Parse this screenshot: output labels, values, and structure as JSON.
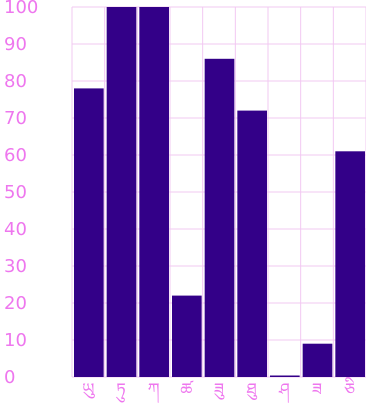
{
  "chart_data": {
    "type": "bar",
    "title": "",
    "xlabel": "",
    "ylabel": "",
    "ylim": [
      0,
      100
    ],
    "yticks": [
      0,
      10,
      20,
      30,
      40,
      50,
      60,
      70,
      80,
      90,
      100
    ],
    "categories": [
      "ཡུ",
      "ཏུ",
      "ཀ",
      "ཚ",
      "ཟུ",
      "ཐུ",
      "ཤ",
      "ཟ",
      "ཅི"
    ],
    "values": [
      78,
      100,
      100,
      22,
      86,
      72,
      0,
      9,
      61
    ],
    "grid": true,
    "legend": "none",
    "colors": {
      "bar": "#330088",
      "grid": "#f2c8f2",
      "axis": "#ee77ee",
      "text": "#ee77ee"
    }
  }
}
